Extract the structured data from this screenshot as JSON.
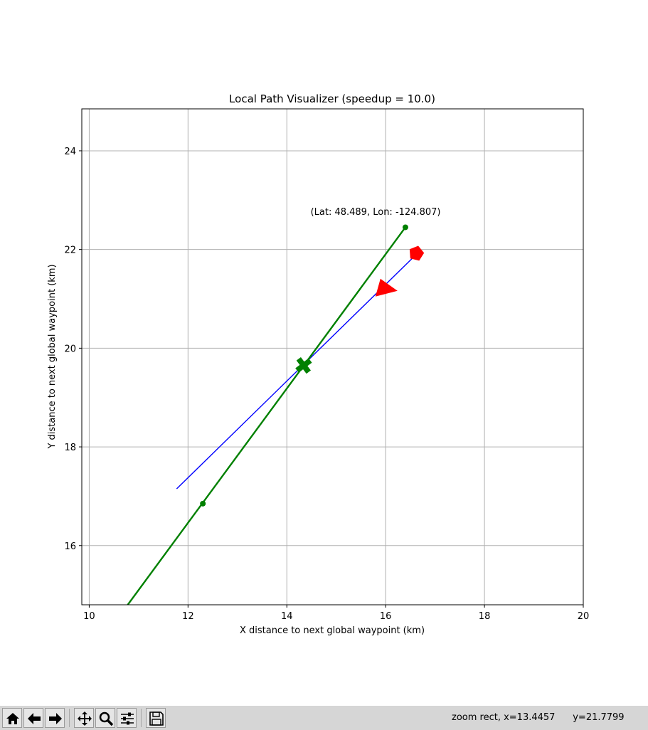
{
  "chart_data": {
    "type": "line",
    "title": "Local Path Visualizer (speedup = 10.0)",
    "xlabel": "X distance to next global waypoint (km)",
    "ylabel": "Y distance to next global waypoint (km)",
    "xlim": [
      9.85,
      20.0
    ],
    "ylim": [
      14.8,
      24.85
    ],
    "xticks": [
      10,
      12,
      14,
      16,
      18,
      20
    ],
    "yticks": [
      16,
      18,
      20,
      22,
      24
    ],
    "grid": true,
    "annotation": {
      "text": "(Lat: 48.489, Lon: -124.807)",
      "x": 14.48,
      "y": 22.7
    },
    "series": [
      {
        "kind": "line",
        "color": "#0000ff",
        "points": [
          [
            11.77,
            17.15
          ],
          [
            16.62,
            21.9
          ]
        ]
      },
      {
        "kind": "line",
        "color": "#008000",
        "points": [
          [
            10.78,
            14.8
          ],
          [
            16.4,
            22.45
          ]
        ]
      },
      {
        "kind": "dots",
        "color": "#008000",
        "points": [
          [
            12.3,
            16.85
          ],
          [
            16.4,
            22.45
          ]
        ]
      },
      {
        "kind": "marker",
        "shape": "X",
        "color": "#008000",
        "x": 14.34,
        "y": 19.65
      },
      {
        "kind": "marker",
        "shape": "pentagon",
        "color": "#ff0000",
        "x": 16.62,
        "y": 21.92
      },
      {
        "kind": "marker",
        "shape": "triangle",
        "color": "#ff0000",
        "x": 15.88,
        "y": 21.22
      }
    ]
  },
  "toolbar": {
    "buttons": [
      {
        "name": "home-button",
        "icon": "home-icon"
      },
      {
        "name": "back-button",
        "icon": "arrow-left-icon"
      },
      {
        "name": "forward-button",
        "icon": "arrow-right-icon"
      },
      {
        "name": "pan-button",
        "icon": "move-icon"
      },
      {
        "name": "zoom-button",
        "icon": "magnifier-icon"
      },
      {
        "name": "configure-button",
        "icon": "sliders-icon"
      },
      {
        "name": "save-button",
        "icon": "save-icon"
      }
    ],
    "status_text": "zoom rect, x=13.4457      y=21.7799"
  }
}
